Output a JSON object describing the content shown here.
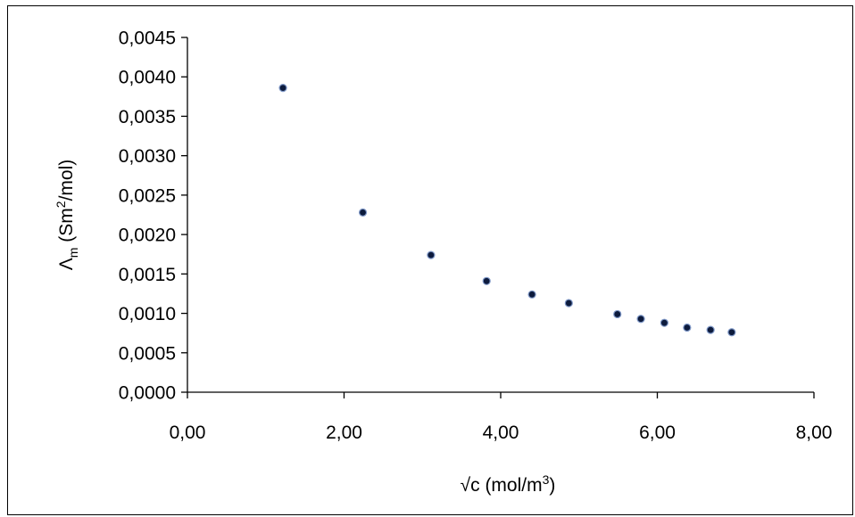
{
  "chart_data": {
    "type": "scatter",
    "title": "",
    "xlabel": {
      "pre": "√c (mol/m",
      "sup": "3",
      "post": ")"
    },
    "ylabel": {
      "main": "Λ",
      "sub": "m",
      "mid": " (Sm",
      "sup": "2",
      "post": "/mol)"
    },
    "xlim": [
      0,
      8
    ],
    "ylim": [
      0,
      0.0045
    ],
    "x_ticks": [
      0,
      2,
      4,
      6,
      8
    ],
    "y_ticks": [
      0,
      0.0005,
      0.001,
      0.0015,
      0.002,
      0.0025,
      0.003,
      0.0035,
      0.004,
      0.0045
    ],
    "x_tick_labels": [
      "0,00",
      "2,00",
      "4,00",
      "6,00",
      "8,00"
    ],
    "y_tick_labels": [
      "0,0000",
      "0,0005",
      "0,0010",
      "0,0015",
      "0,0020",
      "0,0025",
      "0,0030",
      "0,0035",
      "0,0040",
      "0,0045"
    ],
    "grid": false,
    "legend": "none",
    "marker_color": "#0d1b3d",
    "marker_edge_color": "#7f98c7",
    "series": [
      {
        "x": [
          1.22,
          2.24,
          3.11,
          3.82,
          4.4,
          4.87,
          5.49,
          5.79,
          6.09,
          6.38,
          6.68,
          6.95
        ],
        "y": [
          0.00386,
          0.00228,
          0.00174,
          0.00141,
          0.00124,
          0.00113,
          0.00099,
          0.00093,
          0.00088,
          0.00082,
          0.00079,
          0.00076
        ]
      }
    ]
  }
}
